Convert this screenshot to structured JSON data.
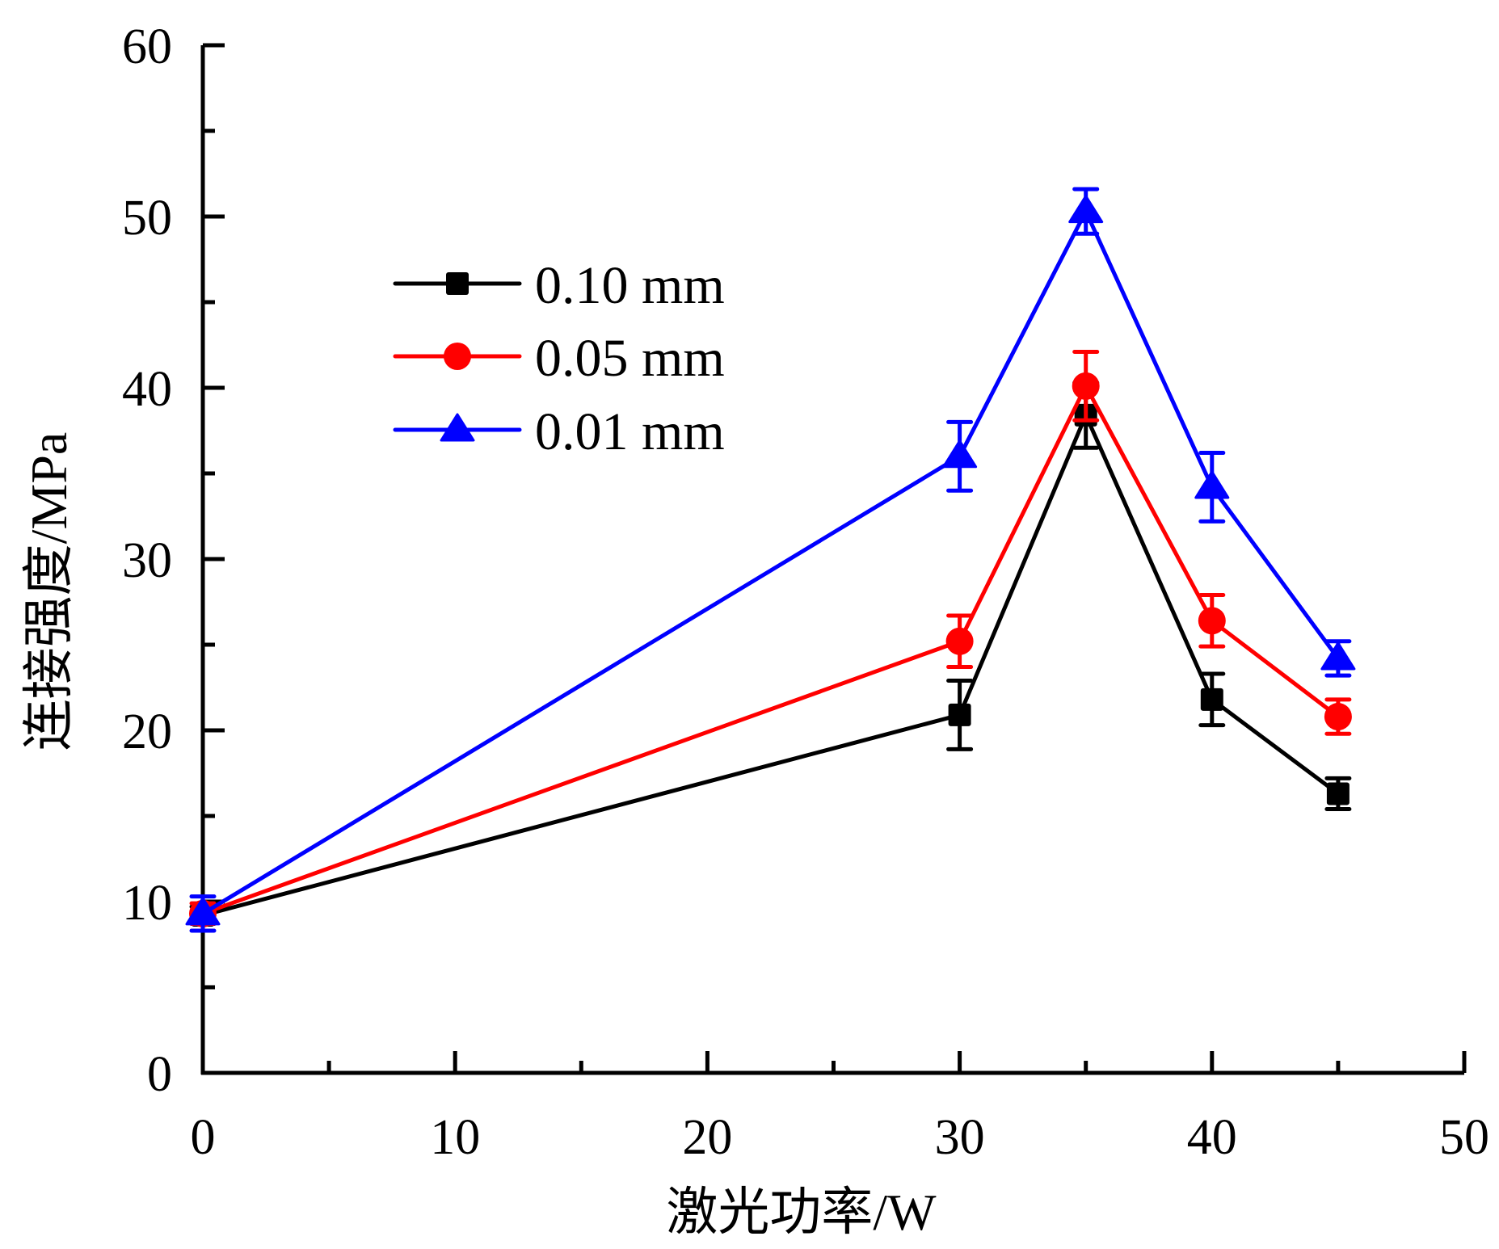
{
  "chart_data": {
    "type": "line",
    "title": "",
    "xlabel": "激光功率/W",
    "ylabel": "连接强度/MPa",
    "xlim": [
      0,
      50
    ],
    "ylim": [
      0,
      60
    ],
    "x_major_ticks": [
      0,
      10,
      20,
      30,
      40,
      50
    ],
    "x_minor_ticks": [
      5,
      15,
      25,
      35,
      45
    ],
    "y_major_ticks": [
      0,
      10,
      20,
      30,
      40,
      50,
      60
    ],
    "y_minor_ticks": [
      5,
      15,
      25,
      35,
      45,
      55
    ],
    "x_tick_labels": [
      "0",
      "10",
      "20",
      "30",
      "40",
      "50"
    ],
    "y_tick_labels": [
      "0",
      "10",
      "20",
      "30",
      "40",
      "50",
      "60"
    ],
    "grid": false,
    "legend_position": "upper-left",
    "x": [
      0,
      30,
      35,
      40,
      45
    ],
    "series": [
      {
        "name": "0.10 mm",
        "color": "#000000",
        "marker": "square",
        "values": [
          9.2,
          20.9,
          38.4,
          21.8,
          16.3
        ],
        "errors": [
          0.5,
          2.0,
          1.9,
          1.5,
          0.9
        ]
      },
      {
        "name": "0.05 mm",
        "color": "#ff0000",
        "marker": "circle",
        "values": [
          9.3,
          25.2,
          40.1,
          26.4,
          20.8
        ],
        "errors": [
          0.6,
          1.5,
          2.0,
          1.5,
          1.0
        ]
      },
      {
        "name": "0.01 mm",
        "color": "#0000ff",
        "marker": "triangle",
        "values": [
          9.3,
          36.0,
          50.3,
          34.2,
          24.2
        ],
        "errors": [
          1.0,
          2.0,
          1.3,
          2.0,
          1.0
        ]
      }
    ]
  }
}
